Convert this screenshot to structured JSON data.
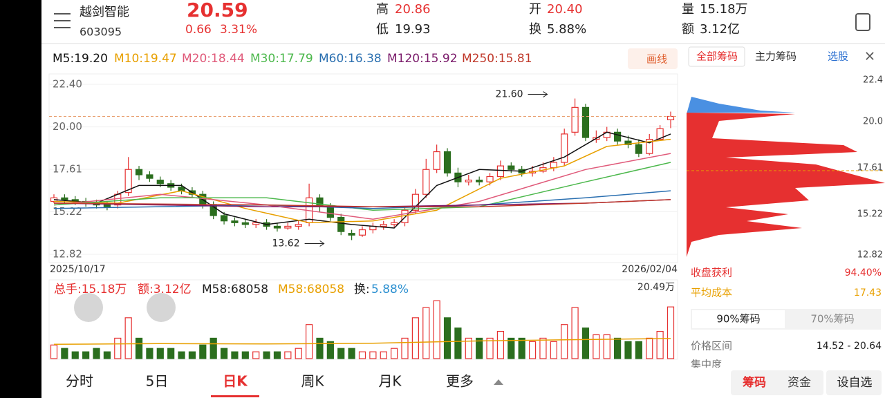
{
  "header": {
    "name": "越剑智能",
    "code": "603095",
    "price": "20.59",
    "change": "0.66",
    "change_pct": "3.31%",
    "high_label": "高",
    "high": "20.86",
    "low_label": "低",
    "low": "19.93",
    "open_label": "开",
    "open": "20.40",
    "turnover_label": "换",
    "turnover": "5.88%",
    "volume_label": "量",
    "volume": "15.18万",
    "amount_label": "额",
    "amount": "3.12亿"
  },
  "toolbar": {
    "draw": "画线"
  },
  "chips": {
    "tabs": [
      "全部筹码",
      "主力筹码",
      "选股"
    ],
    "yticks": [
      "22.4",
      "20.0",
      "17.61",
      "15.22",
      "12.82"
    ],
    "profit_label": "收盘获利",
    "profit": "94.40%",
    "avg_cost_label": "平均成本",
    "avg_cost": "17.43",
    "toggle": [
      "90%筹码",
      "70%筹码"
    ],
    "range_label": "价格区间",
    "range": "14.52 - 20.64",
    "concentration_label": "集中度",
    "buttons": [
      "筹码",
      "资金",
      "设自选"
    ]
  },
  "tabs": [
    "分时",
    "5日",
    "日K",
    "周K",
    "月K",
    "更多"
  ],
  "chart_data": {
    "type": "candlestick",
    "ylim": [
      12.82,
      22.4
    ],
    "yticks": [
      {
        "value": 22.4,
        "label": "22.40"
      },
      {
        "value": 20.0,
        "label": "20.00"
      },
      17.61,
      15.22,
      12.82
    ],
    "x_start": "2025/10/17",
    "x_end": "2026/02/04",
    "up_color": "#e63030",
    "down_color": "#2b6e1e",
    "open": [
      15.8,
      16.0,
      15.9,
      15.8,
      15.7,
      15.6,
      15.6,
      16.3,
      17.6,
      17.3,
      17.0,
      16.8,
      16.6,
      16.4,
      16.2,
      15.6,
      15.0,
      14.7,
      14.6,
      14.5,
      14.6,
      14.4,
      14.3,
      14.4,
      14.6,
      16.0,
      15.5,
      14.9,
      14.0,
      13.9,
      14.2,
      14.4,
      14.5,
      14.6,
      15.3,
      16.2,
      17.6,
      18.6,
      17.4,
      16.9,
      17.0,
      16.9,
      17.2,
      17.8,
      17.6,
      17.4,
      17.5,
      17.7,
      18.0,
      19.7,
      21.1,
      19.3,
      19.4,
      19.7,
      19.2,
      19.0,
      18.5,
      19.3,
      20.4
    ],
    "high": [
      16.2,
      16.2,
      16.1,
      16.0,
      15.9,
      15.8,
      16.4,
      18.3,
      17.8,
      17.5,
      17.2,
      17.0,
      16.8,
      16.6,
      16.4,
      15.8,
      15.2,
      14.9,
      14.8,
      14.8,
      14.8,
      14.6,
      14.6,
      14.7,
      16.8,
      16.2,
      15.7,
      15.1,
      14.2,
      14.4,
      14.6,
      14.7,
      14.8,
      15.5,
      16.5,
      18.2,
      19.0,
      18.8,
      17.7,
      17.3,
      17.2,
      17.4,
      18.1,
      18.0,
      17.8,
      17.8,
      18.0,
      18.3,
      19.9,
      21.6,
      21.3,
      19.8,
      20.0,
      19.9,
      19.5,
      19.3,
      19.6,
      20.1,
      20.86
    ],
    "low": [
      15.7,
      15.7,
      15.6,
      15.5,
      15.4,
      15.3,
      15.4,
      16.1,
      17.0,
      16.9,
      16.6,
      16.4,
      16.2,
      16.0,
      15.4,
      14.8,
      14.5,
      14.4,
      14.3,
      14.3,
      14.2,
      14.1,
      14.2,
      14.2,
      14.4,
      15.2,
      14.7,
      13.9,
      13.62,
      13.8,
      14.0,
      14.2,
      14.3,
      14.4,
      15.1,
      16.0,
      17.4,
      17.2,
      16.6,
      16.7,
      16.7,
      16.7,
      17.0,
      17.4,
      17.2,
      17.2,
      17.4,
      17.5,
      17.8,
      19.5,
      19.2,
      19.1,
      19.2,
      19.0,
      18.8,
      18.3,
      18.4,
      19.3,
      19.93
    ],
    "close": [
      16.0,
      15.9,
      15.8,
      15.7,
      15.6,
      15.5,
      16.2,
      17.6,
      17.3,
      17.1,
      16.8,
      16.6,
      16.4,
      16.2,
      15.6,
      15.0,
      14.7,
      14.6,
      14.5,
      14.6,
      14.4,
      14.3,
      14.4,
      14.5,
      16.0,
      15.5,
      14.9,
      14.1,
      13.9,
      14.2,
      14.4,
      14.5,
      14.6,
      15.3,
      16.2,
      17.6,
      18.6,
      17.4,
      16.9,
      17.0,
      16.9,
      17.2,
      17.8,
      17.6,
      17.4,
      17.5,
      17.7,
      18.0,
      19.6,
      21.1,
      19.4,
      19.4,
      19.7,
      19.2,
      19.0,
      18.5,
      19.3,
      19.9,
      20.59
    ],
    "series": [
      {
        "name": "M5:19.20",
        "color": "#111111",
        "x": [
          0,
          4,
          8,
          12,
          16,
          20,
          24,
          28,
          32,
          36,
          40,
          44,
          48,
          52,
          56,
          58
        ],
        "values": [
          15.9,
          15.7,
          16.7,
          16.7,
          15.1,
          14.5,
          14.8,
          14.5,
          14.3,
          16.7,
          17.6,
          17.5,
          18.3,
          19.7,
          19.1,
          19.6
        ]
      },
      {
        "name": "M10:19.47",
        "color": "#e8a000",
        "x": [
          0,
          6,
          12,
          18,
          24,
          30,
          36,
          42,
          48,
          52,
          58
        ],
        "values": [
          15.8,
          15.7,
          16.4,
          15.4,
          14.6,
          14.7,
          15.3,
          17.1,
          17.8,
          18.9,
          19.3
        ]
      },
      {
        "name": "M20:18.44",
        "color": "#e05a7a",
        "x": [
          0,
          10,
          20,
          30,
          40,
          50,
          58
        ],
        "values": [
          15.6,
          16.2,
          15.6,
          14.8,
          15.8,
          17.6,
          18.5
        ]
      },
      {
        "name": "M30:17.79",
        "color": "#4cb84c",
        "x": [
          0,
          10,
          20,
          30,
          40,
          50,
          58
        ],
        "values": [
          15.6,
          16.0,
          16.0,
          15.3,
          15.5,
          16.9,
          18.0
        ]
      },
      {
        "name": "M60:16.38",
        "color": "#2a6fb0",
        "x": [
          0,
          20,
          30,
          40,
          50,
          58
        ],
        "values": [
          15.4,
          15.6,
          15.4,
          15.6,
          16.0,
          16.4
        ]
      },
      {
        "name": "M120:15.92",
        "color": "#7a1a6a",
        "x": [
          0,
          20,
          30,
          40,
          50,
          58
        ],
        "values": [
          15.7,
          15.5,
          15.5,
          15.6,
          15.7,
          15.9
        ]
      },
      {
        "name": "M250:15.81",
        "color": "#c0392b",
        "x": [
          0,
          20,
          30,
          40,
          50,
          58
        ],
        "values": [
          15.7,
          15.6,
          15.5,
          15.5,
          15.7,
          15.9
        ]
      }
    ],
    "annotations": [
      {
        "text": "21.60",
        "x": 49,
        "y": 21.6
      },
      {
        "text": "13.62",
        "x": 28,
        "y": 13.62
      }
    ],
    "volume": {
      "ylim": [
        0,
        20.49
      ],
      "yticks": [
        {
          "value": 20.49,
          "label": "20.49万"
        }
      ],
      "legend": [
        "总手:15.18万",
        "额:3.12亿",
        "M58:68058",
        "M58:68058",
        "换:",
        "5.88%"
      ],
      "values": [
        4,
        3,
        2,
        2,
        3,
        2,
        6,
        12,
        6,
        3,
        3,
        3,
        2,
        2,
        4,
        6,
        3,
        2,
        2,
        2,
        2,
        2,
        2,
        3,
        10,
        6,
        5,
        3,
        3,
        2,
        2,
        2,
        3,
        6,
        12,
        15,
        17,
        12,
        9,
        6,
        6,
        6,
        8,
        6,
        6,
        5,
        6,
        5,
        10,
        15,
        9,
        7,
        7,
        6,
        5,
        5,
        6,
        8,
        15.18
      ],
      "ma": {
        "color": "#e8a000",
        "x": [
          0,
          10,
          20,
          30,
          40,
          50,
          58
        ],
        "values": [
          4.2,
          4.4,
          4.3,
          4.5,
          5.2,
          5.6,
          5.9
        ]
      }
    }
  }
}
